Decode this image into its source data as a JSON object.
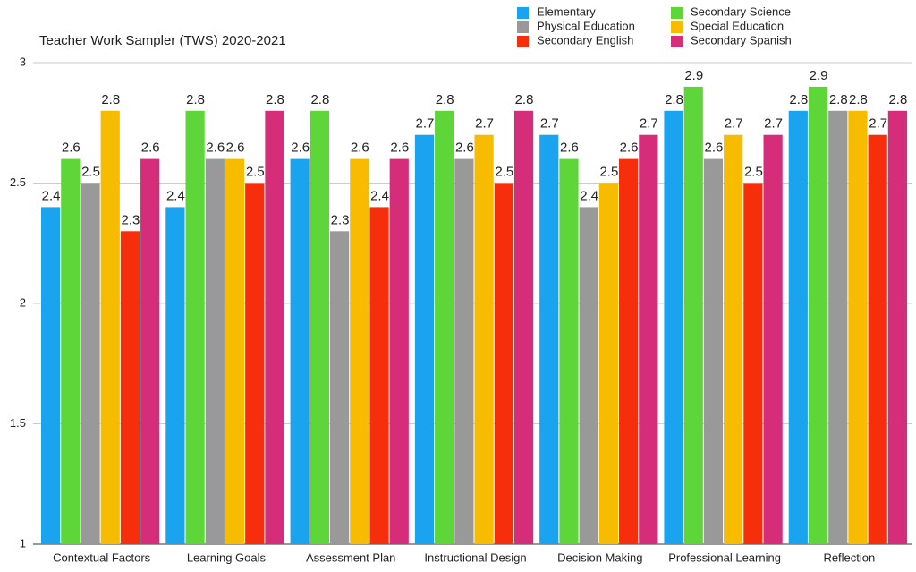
{
  "chart_data": {
    "type": "bar",
    "title": "Teacher Work Sampler (TWS) 2020-2021",
    "categories": [
      "Contextual Factors",
      "Learning Goals",
      "Assessment Plan",
      "Instructional Design",
      "Decision Making",
      "Professional Learning",
      "Reflection"
    ],
    "series": [
      {
        "name": "Elementary",
        "color": "#1aa4f0",
        "values": [
          2.4,
          2.4,
          2.6,
          2.7,
          2.7,
          2.8,
          2.8
        ]
      },
      {
        "name": "Secondary Science",
        "color": "#5ed63a",
        "values": [
          2.6,
          2.8,
          2.8,
          2.8,
          2.6,
          2.9,
          2.9
        ]
      },
      {
        "name": "Physical Education",
        "color": "#999999",
        "values": [
          2.5,
          2.6,
          2.3,
          2.6,
          2.4,
          2.6,
          2.8
        ]
      },
      {
        "name": "Special Education",
        "color": "#f7bb00",
        "values": [
          2.8,
          2.6,
          2.6,
          2.7,
          2.5,
          2.7,
          2.8
        ]
      },
      {
        "name": "Secondary English",
        "color": "#f72e0c",
        "values": [
          2.3,
          2.5,
          2.4,
          2.5,
          2.6,
          2.5,
          2.7
        ]
      },
      {
        "name": "Secondary Spanish",
        "color": "#d62d7b",
        "values": [
          2.6,
          2.8,
          2.6,
          2.8,
          2.7,
          2.7,
          2.8
        ]
      }
    ],
    "ylim": [
      1,
      3
    ],
    "yticks": [
      1,
      1.5,
      2,
      2.5,
      3
    ],
    "grid": true,
    "legend": "top-right"
  }
}
